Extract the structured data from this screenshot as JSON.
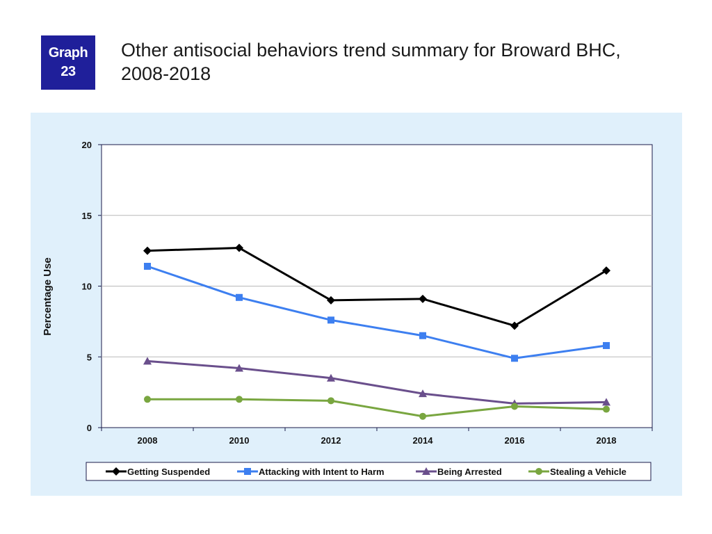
{
  "badge": {
    "line1": "Graph",
    "line2": "23"
  },
  "title_line1": "Other antisocial behaviors trend summary for Broward BHC,",
  "title_line2": "2008-2018",
  "chart_data": {
    "type": "line",
    "categories": [
      "2008",
      "2010",
      "2012",
      "2014",
      "2016",
      "2018"
    ],
    "ylabel": "Percentage Use",
    "ylim": [
      0,
      20
    ],
    "yticks": [
      0,
      5,
      10,
      15,
      20
    ],
    "grid": true,
    "legend_position": "bottom",
    "series": [
      {
        "name": "Getting Suspended",
        "color": "#000000",
        "marker": "diamond",
        "values": [
          12.5,
          12.7,
          9.0,
          9.1,
          7.2,
          11.1
        ]
      },
      {
        "name": "Attacking with Intent to Harm",
        "color": "#3d7ff0",
        "marker": "square",
        "values": [
          11.4,
          9.2,
          7.6,
          6.5,
          4.9,
          5.8
        ]
      },
      {
        "name": "Being Arrested",
        "color": "#6a4f8c",
        "marker": "triangle",
        "values": [
          4.7,
          4.2,
          3.5,
          2.4,
          1.7,
          1.8
        ]
      },
      {
        "name": "Stealing a Vehicle",
        "color": "#79a640",
        "marker": "circle",
        "values": [
          2.0,
          2.0,
          1.9,
          0.8,
          1.5,
          1.3
        ]
      }
    ]
  }
}
